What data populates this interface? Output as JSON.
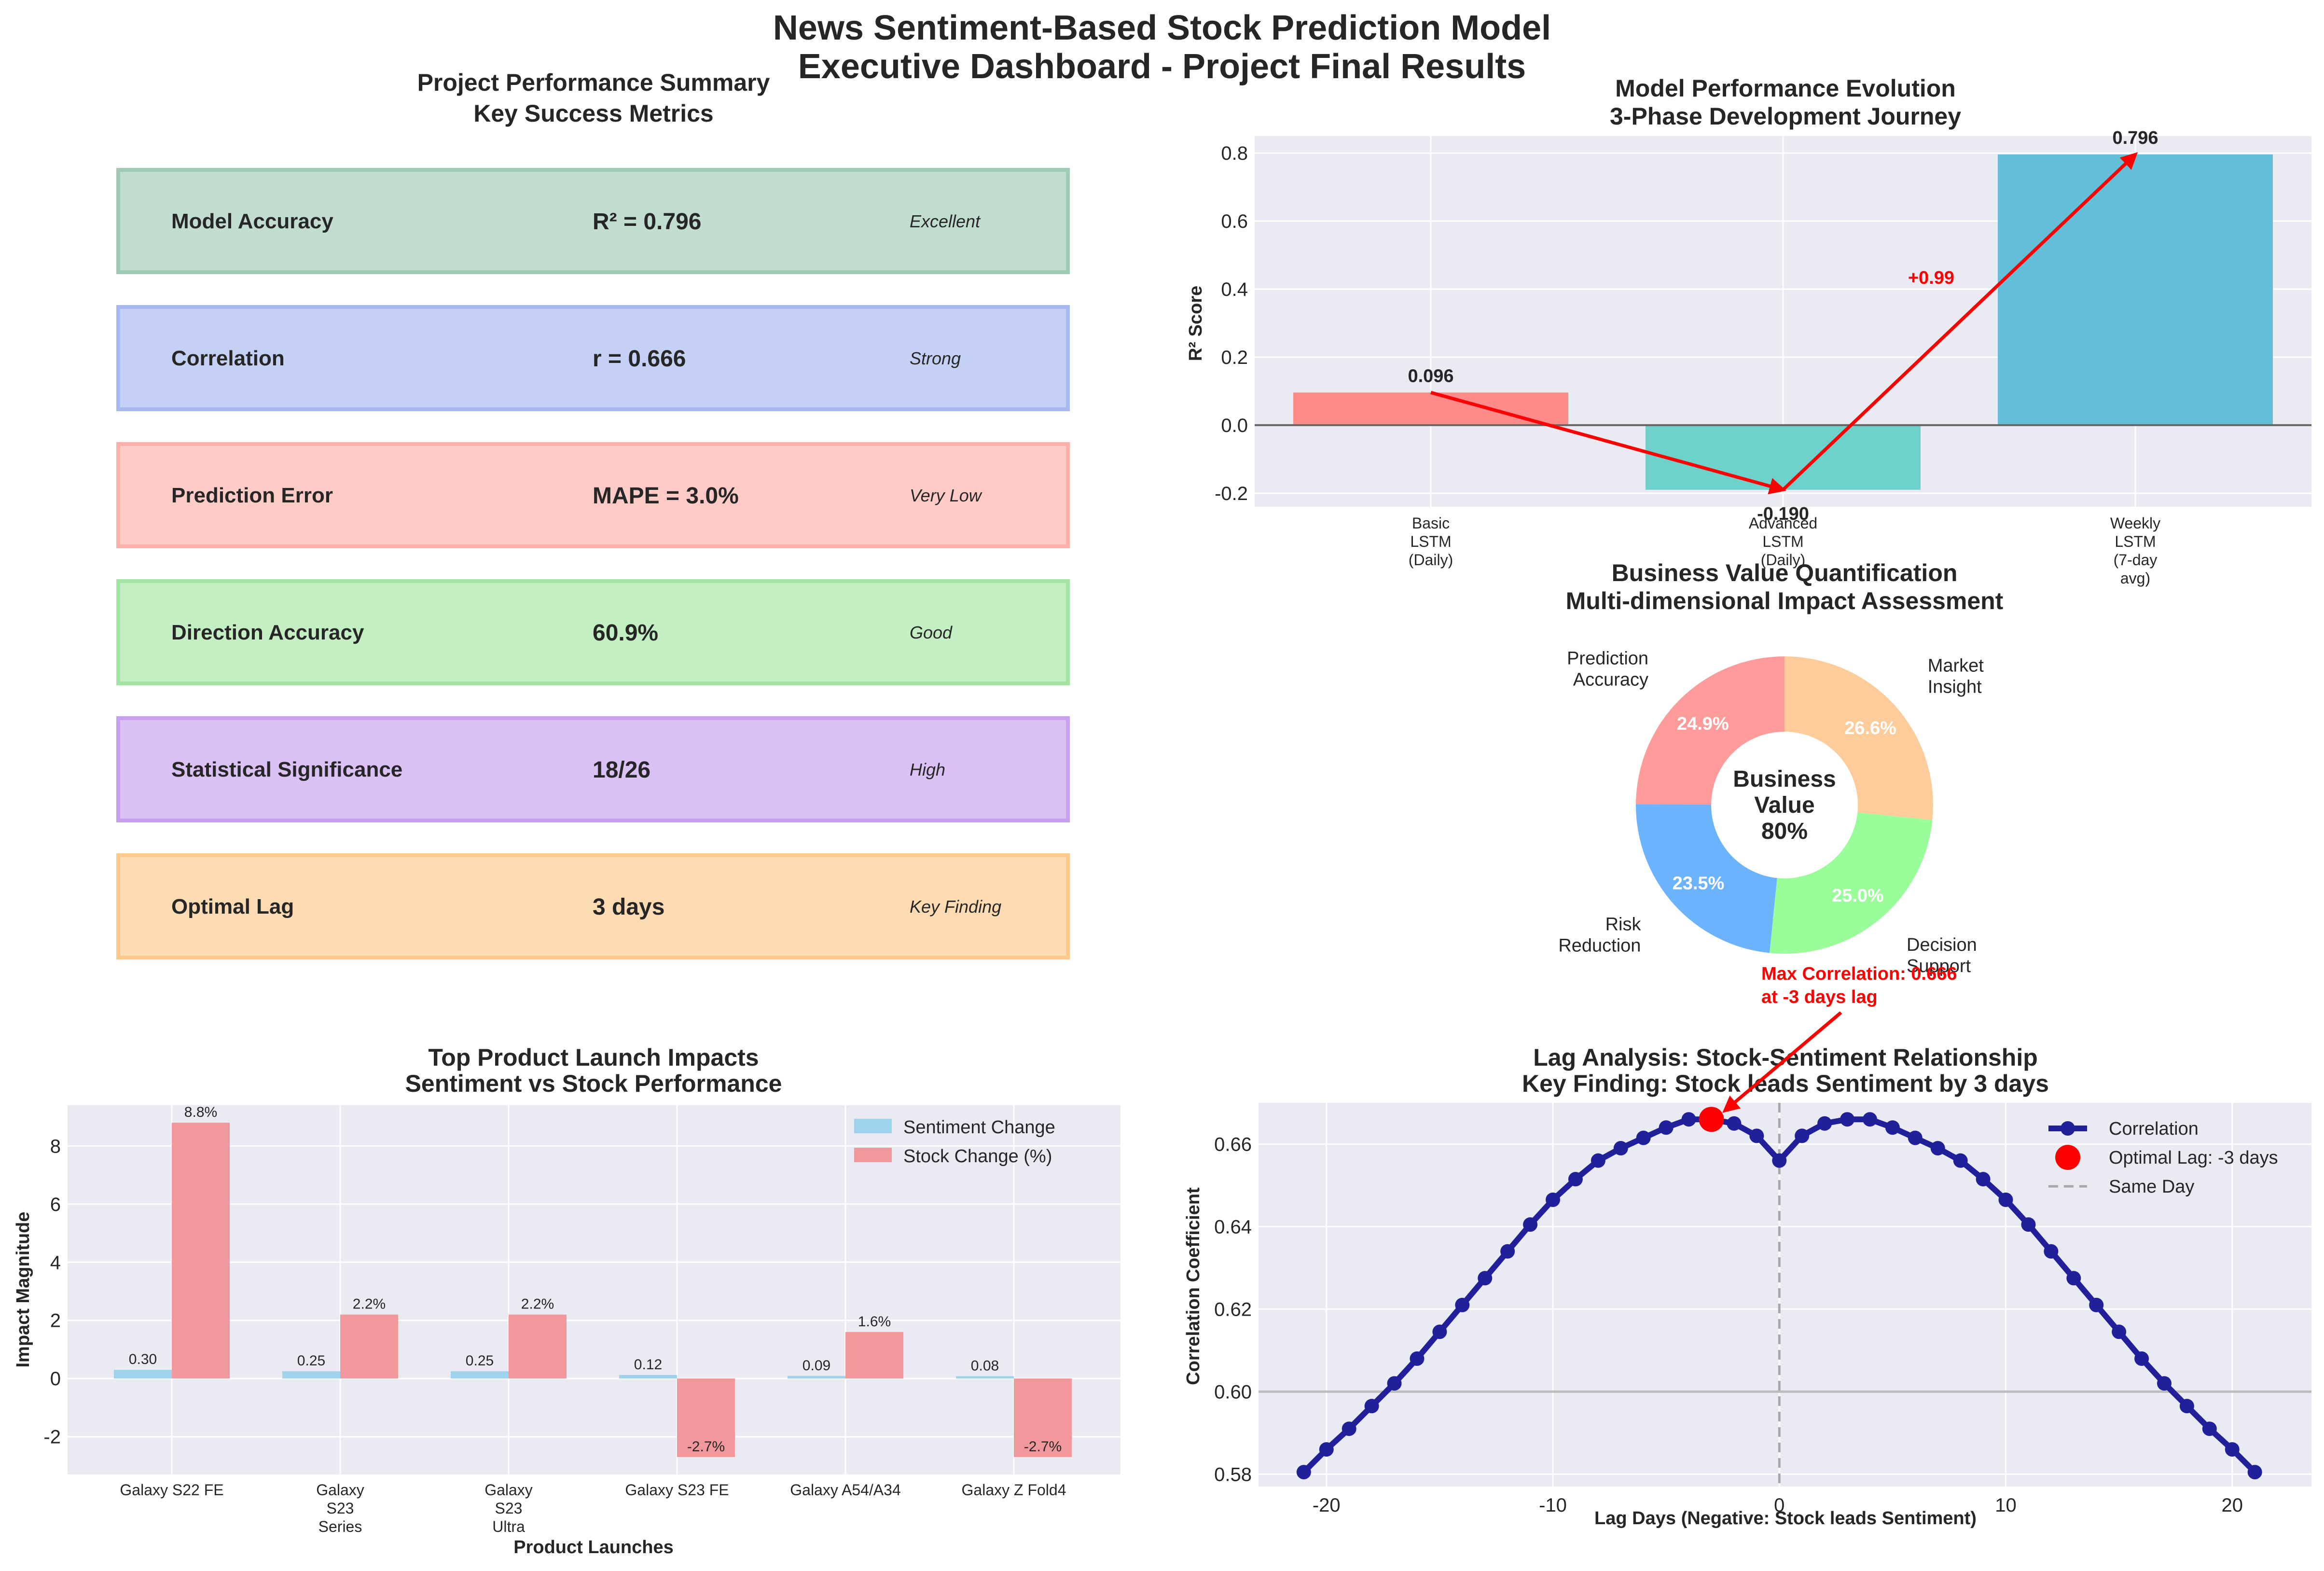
{
  "title": {
    "line1": "News Sentiment-Based Stock Prediction Model",
    "line2": "Executive Dashboard - Project Final Results"
  },
  "summary": {
    "title1": "Project Performance Summary",
    "title2": "Key Success Metrics",
    "metrics": [
      {
        "name": "Model Accuracy",
        "value": "R² = 0.796",
        "rating": "Excellent",
        "fill": "#c0ddd0",
        "stroke": "#9fcbb4"
      },
      {
        "name": "Correlation",
        "value": "r = 0.666",
        "rating": "Strong",
        "fill": "#c5d1f4",
        "stroke": "#a9b9ef"
      },
      {
        "name": "Prediction Error",
        "value": "MAPE = 3.0%",
        "rating": "Very Low",
        "fill": "#fecbc7",
        "stroke": "#fdb0a9"
      },
      {
        "name": "Direction Accuracy",
        "value": "60.9%",
        "rating": "Good",
        "fill": "#c3efc3",
        "stroke": "#a3e4a3"
      },
      {
        "name": "Statistical Significance",
        "value": "18/26",
        "rating": "High",
        "fill": "#dcc1f5",
        "stroke": "#c7a0ef"
      },
      {
        "name": "Optimal Lag",
        "value": "3 days",
        "rating": "Key Finding",
        "fill": "#fedcb3",
        "stroke": "#fdc98d"
      }
    ]
  },
  "chart_data": [
    {
      "type": "bar",
      "title": "Model Performance Evolution",
      "subtitle": "3-Phase Development Journey",
      "ylabel": "R² Score",
      "ylim": [
        -0.24,
        0.85
      ],
      "yticks": [
        "-0.2",
        "0.0",
        "0.2",
        "0.4",
        "0.6",
        "0.8"
      ],
      "categories": [
        {
          "lines": [
            "Basic",
            "LSTM",
            "(Daily)"
          ]
        },
        {
          "lines": [
            "Advanced",
            "LSTM",
            "(Daily)"
          ]
        },
        {
          "lines": [
            "Weekly",
            "LSTM",
            "(7-day",
            "avg)"
          ]
        }
      ],
      "values": [
        0.096,
        -0.19,
        0.796
      ],
      "value_labels": [
        "0.096",
        "-0.190",
        "0.796"
      ],
      "colors": [
        "#ff8a8a",
        "#6fd1cb",
        "#63bed7"
      ],
      "annotation": "+0.99"
    },
    {
      "type": "pie",
      "title": "Business Value Quantification",
      "subtitle": "Multi-dimensional Impact Assessment",
      "center_label": [
        "Business",
        "Value",
        "80%"
      ],
      "slices": [
        {
          "label": [
            "Prediction",
            "Accuracy"
          ],
          "value": 24.9,
          "pct": "24.9%",
          "color": "#ff9b9b"
        },
        {
          "label": [
            "Risk",
            "Reduction"
          ],
          "value": 23.5,
          "pct": "23.5%",
          "color": "#6cb3fd"
        },
        {
          "label": [
            "Decision",
            "Support"
          ],
          "value": 25.0,
          "pct": "25.0%",
          "color": "#99fd99"
        },
        {
          "label": [
            "Market",
            "Insight"
          ],
          "value": 26.6,
          "pct": "26.6%",
          "color": "#fecc9a"
        }
      ]
    },
    {
      "type": "bar",
      "title": "Top Product Launch Impacts",
      "subtitle": "Sentiment vs Stock Performance",
      "xlabel": "Product Launches",
      "ylabel": "Impact Magnitude",
      "ylim": [
        -3.3,
        9.4
      ],
      "yticks": [
        "-2",
        "0",
        "2",
        "4",
        "6",
        "8"
      ],
      "categories": [
        {
          "lines": [
            "Galaxy S22 FE"
          ]
        },
        {
          "lines": [
            "Galaxy",
            "S23",
            "Series"
          ]
        },
        {
          "lines": [
            "Galaxy",
            "S23",
            "Ultra"
          ]
        },
        {
          "lines": [
            "Galaxy S23 FE"
          ]
        },
        {
          "lines": [
            "Galaxy A54/A34"
          ]
        },
        {
          "lines": [
            "Galaxy Z Fold4"
          ]
        }
      ],
      "series": [
        {
          "name": "Sentiment Change",
          "color": "#9ed3ee",
          "values": [
            0.3,
            0.25,
            0.25,
            0.12,
            0.09,
            0.08
          ],
          "labels": [
            "0.30",
            "0.25",
            "0.25",
            "0.12",
            "0.09",
            "0.08"
          ]
        },
        {
          "name": "Stock Change (%)",
          "color": "#f0989c",
          "values": [
            8.8,
            2.2,
            2.2,
            -2.7,
            1.6,
            -2.7
          ],
          "labels": [
            "8.8%",
            "2.2%",
            "2.2%",
            "-2.7%",
            "1.6%",
            "-2.7%"
          ]
        }
      ]
    },
    {
      "type": "line",
      "title": "Lag Analysis: Stock-Sentiment Relationship",
      "subtitle": "Key Finding: Stock leads Sentiment by 3 days",
      "xlabel": "Lag Days (Negative: Stock leads Sentiment)",
      "ylabel": "Correlation Coefficient",
      "xlim": [
        -23,
        23.5
      ],
      "ylim": [
        0.577,
        0.67
      ],
      "xticks": [
        "-20",
        "-10",
        "0",
        "10",
        "20"
      ],
      "yticks": [
        "0.58",
        "0.60",
        "0.62",
        "0.64",
        "0.66"
      ],
      "series": [
        {
          "name": "Correlation",
          "color": "#20209a",
          "x": [
            -21,
            -20,
            -19,
            -18,
            -17,
            -16,
            -15,
            -14,
            -13,
            -12,
            -11,
            -10,
            -9,
            -8,
            -7,
            -6,
            -5,
            -4,
            -3,
            -2,
            -1,
            0,
            1,
            2,
            3,
            4,
            5,
            6,
            7,
            8,
            9,
            10,
            11,
            12,
            13,
            14,
            15,
            16,
            17,
            18,
            19,
            20,
            21
          ],
          "y": [
            0.5805,
            0.586,
            0.591,
            0.5965,
            0.602,
            0.608,
            0.6145,
            0.621,
            0.6275,
            0.634,
            0.6405,
            0.6465,
            0.6515,
            0.656,
            0.659,
            0.6615,
            0.664,
            0.666,
            0.666,
            0.665,
            0.662,
            0.656,
            0.662,
            0.665,
            0.666,
            0.666,
            0.664,
            0.6615,
            0.659,
            0.656,
            0.6515,
            0.6465,
            0.6405,
            0.634,
            0.6275,
            0.621,
            0.6145,
            0.608,
            0.602,
            0.5965,
            0.591,
            0.586,
            0.5805
          ]
        }
      ],
      "optimal": {
        "name": "Optimal Lag: -3 days",
        "x": -3,
        "y": 0.666,
        "color": "#ff0000"
      },
      "same_day": {
        "name": "Same Day",
        "x": 0
      },
      "reference_y": 0.6,
      "annotation": [
        "Max Correlation: 0.666",
        "at -3 days lag"
      ]
    }
  ]
}
